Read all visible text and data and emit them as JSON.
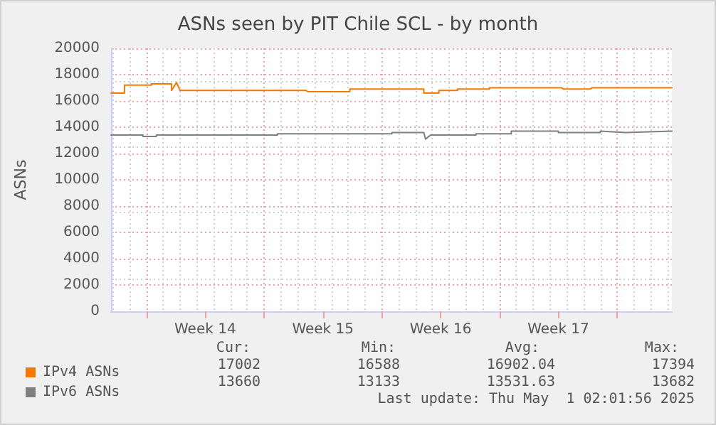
{
  "chart_data": {
    "type": "line",
    "title": "ASNs seen by PIT Chile SCL - by month",
    "ylabel": "ASNs",
    "xlim": [
      "2025-03-28T21:36",
      "2025-05-01T06:00"
    ],
    "xticks": [
      {
        "value": "2025-03-31",
        "label": null
      },
      {
        "value": "2025-04-03T12:00",
        "label": "Week 14"
      },
      {
        "value": "2025-04-07",
        "label": null
      },
      {
        "value": "2025-04-10T12:00",
        "label": "Week 15"
      },
      {
        "value": "2025-04-14",
        "label": null
      },
      {
        "value": "2025-04-17T12:00",
        "label": "Week 16"
      },
      {
        "value": "2025-04-21",
        "label": null
      },
      {
        "value": "2025-04-24T12:00",
        "label": "Week 17"
      },
      {
        "value": "2025-04-28",
        "label": null
      }
    ],
    "ylim": [
      0,
      20000
    ],
    "yticks": [
      0,
      2000,
      4000,
      6000,
      8000,
      10000,
      12000,
      14000,
      16000,
      18000,
      20000
    ],
    "grid": true,
    "legend": "bottom left",
    "marker": "none",
    "line_style": "solid",
    "series": [
      {
        "name": "IPv4 ASNs",
        "color": "#f57900",
        "x": [
          "2025-03-28T21:36",
          "2025-03-29T16:48",
          "2025-03-29T16:48",
          "2025-03-31T07:12",
          "2025-03-31T07:12",
          "2025-04-01T12:00",
          "2025-04-01T12:00",
          "2025-04-01T19:12",
          "2025-04-01T21:36",
          "2025-04-02T00:00",
          "2025-04-07T09:36",
          "2025-04-07T09:36",
          "2025-04-09T12:00",
          "2025-04-09T14:24",
          "2025-04-12T02:24",
          "2025-04-12T02:24",
          "2025-04-16T12:00",
          "2025-04-16T12:00",
          "2025-04-17T09:36",
          "2025-04-17T09:36",
          "2025-04-18T12:00",
          "2025-04-18T12:00",
          "2025-04-20T09:36",
          "2025-04-20T09:36",
          "2025-04-21T16:48",
          "2025-04-21T16:48",
          "2025-04-24T16:48",
          "2025-04-24T19:12",
          "2025-04-26T09:36",
          "2025-04-26T12:00",
          "2025-04-28T09:36",
          "2025-04-28T12:00",
          "2025-05-01T06:00"
        ],
        "values": [
          16600,
          16600,
          17200,
          17200,
          17300,
          17300,
          16800,
          17400,
          17100,
          16800,
          16800,
          16800,
          16800,
          16700,
          16700,
          16900,
          16900,
          16600,
          16600,
          16800,
          16800,
          16900,
          16900,
          17000,
          17000,
          17000,
          17000,
          16900,
          16900,
          17000,
          17000,
          17000,
          17000
        ]
      },
      {
        "name": "IPv6 ASNs",
        "color": "#7f7f7f",
        "x": [
          "2025-03-28T21:36",
          "2025-03-30T19:12",
          "2025-03-30T19:12",
          "2025-03-31T14:24",
          "2025-03-31T14:24",
          "2025-04-07T19:12",
          "2025-04-07T19:12",
          "2025-04-14T14:24",
          "2025-04-14T14:24",
          "2025-04-16T12:00",
          "2025-04-16T14:24",
          "2025-04-16T21:36",
          "2025-04-19T14:24",
          "2025-04-19T14:24",
          "2025-04-21T16:48",
          "2025-04-21T16:48",
          "2025-04-24T12:00",
          "2025-04-24T12:00",
          "2025-04-27T00:00",
          "2025-04-27T00:00",
          "2025-04-28T12:00",
          "2025-05-01T06:00"
        ],
        "values": [
          13400,
          13400,
          13300,
          13300,
          13400,
          13400,
          13500,
          13500,
          13600,
          13600,
          13100,
          13400,
          13400,
          13500,
          13500,
          13700,
          13700,
          13600,
          13600,
          13700,
          13600,
          13700
        ]
      }
    ],
    "annotations": [
      "Cur:",
      "Min:",
      "Avg:",
      "Max:",
      "17002",
      "16588",
      "16902.04",
      "17394",
      "13660",
      "13133",
      "13531.63",
      "13682",
      "Last update: Thu May  1 02:01:56 2025"
    ]
  }
}
